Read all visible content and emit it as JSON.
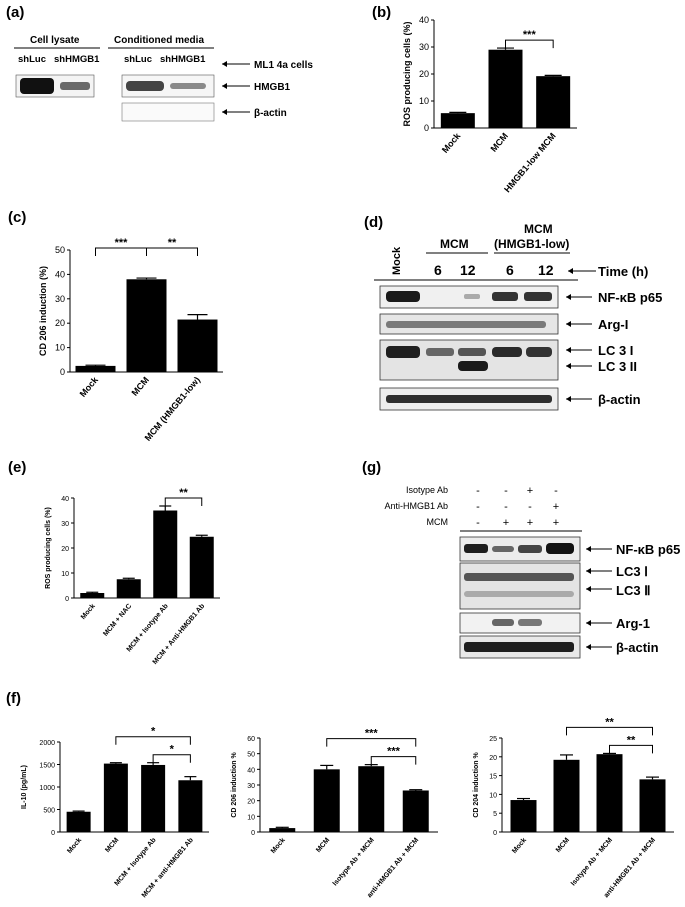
{
  "panels": {
    "a": "(a)",
    "b": "(b)",
    "c": "(c)",
    "d": "(d)",
    "e": "(e)",
    "f": "(f)",
    "g": "(g)"
  },
  "blot_a": {
    "group1": "Cell lysate",
    "group2": "Conditioned media",
    "lanes1": [
      "shLuc",
      "shHMGB1"
    ],
    "lanes2": [
      "shLuc",
      "shHMGB1"
    ],
    "cells": "ML1 4a cells",
    "rows": [
      "HMGB1",
      "β-actin"
    ]
  },
  "blot_d": {
    "mock": "Mock",
    "group1": "MCM",
    "group2_l1": "MCM",
    "group2_l2": "(HMGB1-low)",
    "times": [
      "6",
      "12",
      "6",
      "12"
    ],
    "time_label": "Time (h)",
    "rows": [
      "NF-κB p65",
      "Arg-I",
      "LC 3 I",
      "LC 3 II",
      "β-actin"
    ]
  },
  "blot_g": {
    "cond_labels": [
      "Isotype Ab",
      "Anti-HMGB1 Ab",
      "MCM"
    ],
    "signs": [
      [
        "-",
        "-",
        "+",
        "-"
      ],
      [
        "-",
        "-",
        "-",
        "+"
      ],
      [
        "-",
        "+",
        "+",
        "+"
      ]
    ],
    "rows": [
      "NF-κB p65",
      "LC3 Ⅰ",
      "LC3 Ⅱ",
      "Arg-1",
      "β-actin"
    ]
  },
  "chart_data": [
    {
      "id": "b",
      "type": "bar",
      "categories": [
        "Mock",
        "MCM",
        "HMGB1-low MCM"
      ],
      "values": [
        5.5,
        29,
        19.2
      ],
      "errors": [
        0.3,
        0.6,
        0.3
      ],
      "ylabel": "ROS producing cells (%)",
      "ylim": [
        0,
        40
      ],
      "yticks": [
        0,
        10,
        20,
        30,
        40
      ],
      "annotations": [
        {
          "from": 1,
          "to": 2,
          "label": "***"
        }
      ]
    },
    {
      "id": "c",
      "type": "bar",
      "categories": [
        "Mock",
        "MCM",
        "MCM (HMGB1-low)"
      ],
      "values": [
        2.5,
        38,
        21.5
      ],
      "errors": [
        0.3,
        0.5,
        2
      ],
      "ylabel": "CD 206 induction (%)",
      "ylim": [
        0,
        50
      ],
      "yticks": [
        0,
        10,
        20,
        30,
        40,
        50
      ],
      "annotations": [
        {
          "from": 0,
          "to": 1,
          "label": "***"
        },
        {
          "from": 1,
          "to": 2,
          "label": "**"
        }
      ]
    },
    {
      "id": "e",
      "type": "bar",
      "categories": [
        "Mock",
        "MCM + NAC",
        "MCM + Isotype Ab",
        "MCM + Anti-HMGB1 Ab"
      ],
      "values": [
        2,
        7.5,
        35,
        24.5
      ],
      "errors": [
        0.3,
        0.4,
        1.8,
        0.6
      ],
      "ylabel": "ROS producing cells (%)",
      "ylim": [
        0,
        40
      ],
      "yticks": [
        0,
        10,
        20,
        30,
        40
      ],
      "annotations": [
        {
          "from": 2,
          "to": 3,
          "label": "**"
        }
      ]
    },
    {
      "id": "f1",
      "type": "bar",
      "categories": [
        "Mock",
        "MCM",
        "MCM + Isotype Ab",
        "MCM + anti-HMGB1 Ab"
      ],
      "values": [
        450,
        1520,
        1490,
        1150
      ],
      "errors": [
        15,
        20,
        50,
        80
      ],
      "ylabel": "IL-10 (pg/mL)",
      "ylim": [
        0,
        2000
      ],
      "yticks": [
        0,
        500,
        1000,
        1500,
        2000
      ],
      "annotations": [
        {
          "from": 1,
          "to": 3,
          "label": "*"
        },
        {
          "from": 2,
          "to": 3,
          "label": "*"
        }
      ]
    },
    {
      "id": "f2",
      "type": "bar",
      "categories": [
        "Mock",
        "MCM",
        "Isotype Ab + MCM",
        "anti-HMGB1 Ab + MCM"
      ],
      "values": [
        2.5,
        40,
        42,
        26.5
      ],
      "errors": [
        0.5,
        2.5,
        1,
        0.5
      ],
      "ylabel": "CD 206 induction %",
      "ylim": [
        0,
        60
      ],
      "yticks": [
        0,
        10,
        20,
        30,
        40,
        50,
        60
      ],
      "annotations": [
        {
          "from": 1,
          "to": 3,
          "label": "***"
        },
        {
          "from": 2,
          "to": 3,
          "label": "***"
        }
      ]
    },
    {
      "id": "f3",
      "type": "bar",
      "categories": [
        "Mock",
        "MCM",
        "Isotype Ab + MCM",
        "anti-HMGB1 Ab + MCM"
      ],
      "values": [
        8.5,
        19.2,
        20.7,
        14
      ],
      "errors": [
        0.4,
        1.3,
        0.2,
        0.6
      ],
      "ylabel": "CD 204 induction %",
      "ylim": [
        0,
        25
      ],
      "yticks": [
        0,
        5,
        10,
        15,
        20,
        25
      ],
      "annotations": [
        {
          "from": 1,
          "to": 3,
          "label": "**"
        },
        {
          "from": 2,
          "to": 3,
          "label": "**"
        }
      ]
    }
  ]
}
